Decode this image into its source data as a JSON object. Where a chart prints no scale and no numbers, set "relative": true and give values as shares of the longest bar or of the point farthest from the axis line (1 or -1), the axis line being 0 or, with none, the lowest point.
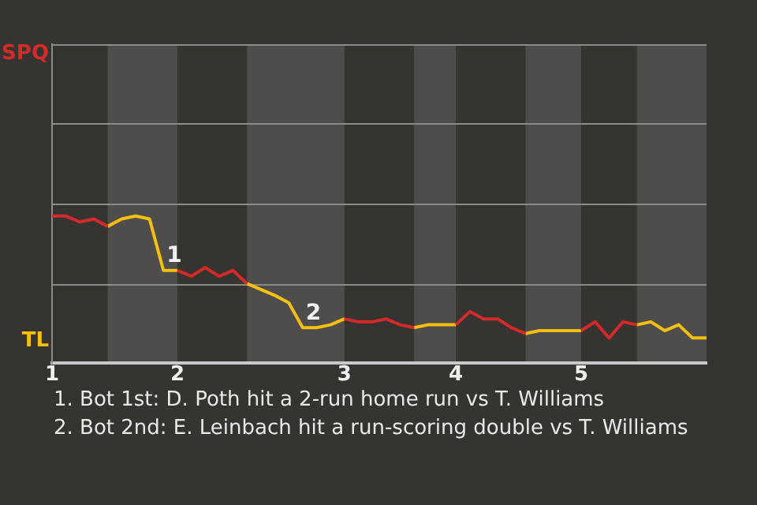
{
  "chart_data": {
    "type": "line",
    "marker": "none",
    "line_style": "solid",
    "relative": true,
    "legend": "left",
    "categories": [
      "1",
      null,
      null,
      null,
      null,
      null,
      null,
      null,
      null,
      "2",
      null,
      null,
      null,
      null,
      null,
      null,
      null,
      null,
      null,
      null,
      null,
      "3",
      null,
      null,
      null,
      null,
      null,
      null,
      null,
      "4",
      null,
      null,
      null,
      null,
      null,
      null,
      null,
      null,
      "5",
      null,
      null,
      null,
      null,
      null,
      null,
      null,
      null,
      null
    ],
    "series": [
      {
        "name": "SPQ",
        "color": "#d42a2a",
        "values": [
          1,
          1,
          0.96,
          0.98,
          0.93,
          null,
          null,
          null,
          null,
          0.63,
          0.59,
          0.65,
          0.59,
          0.63,
          0.54,
          null,
          null,
          null,
          null,
          null,
          null,
          0.3,
          0.28,
          0.28,
          0.3,
          0.26,
          0.24,
          null,
          null,
          0.26,
          0.35,
          0.3,
          0.3,
          0.24,
          0.2,
          null,
          null,
          null,
          0.22,
          0.28,
          0.17,
          0.28,
          0.26,
          null,
          null,
          null,
          null,
          null
        ]
      },
      {
        "name": "TL",
        "color": "#f5bf10",
        "values": [
          null,
          null,
          null,
          null,
          0.93,
          0.98,
          1,
          0.98,
          0.63,
          0.63,
          null,
          null,
          null,
          null,
          0.54,
          0.5,
          0.46,
          0.41,
          0.24,
          0.24,
          0.26,
          0.3,
          null,
          null,
          null,
          null,
          0.24,
          0.26,
          0.26,
          0.26,
          null,
          null,
          null,
          null,
          0.2,
          0.22,
          0.22,
          0.22,
          0.22,
          null,
          null,
          null,
          0.26,
          0.28,
          0.22,
          0.26,
          0.17,
          0.17
        ]
      }
    ],
    "ref_lines": [
      {
        "axis": "y",
        "value": 0.54,
        "color": "#8a8a8a"
      },
      {
        "axis": "y",
        "value": 1.09,
        "color": "#8a8a8a"
      },
      {
        "axis": "y",
        "value": 1.63,
        "color": "#8a8a8a"
      },
      {
        "axis": "y",
        "value": 2.17,
        "color": "#8a8a8a"
      }
    ],
    "annotations": [
      {
        "text": "1",
        "y": 0.63
      },
      {
        "text": "2",
        "y": 0.24
      },
      "1. Bot 1st: D. Poth hit a 2-run home run vs T. Williams",
      "2. Bot 2nd: E. Leinbach hit a run-scoring double vs T. Williams"
    ]
  }
}
